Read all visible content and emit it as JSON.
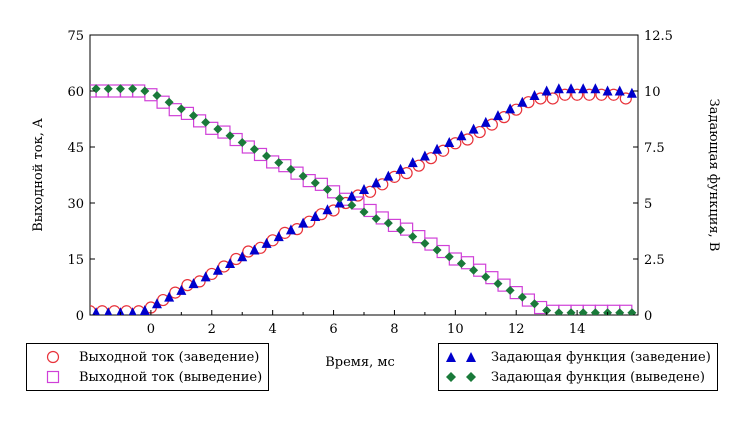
{
  "chart_data": {
    "type": "scatter",
    "xlabel": "Время, мс",
    "ylabel_left": "Выходной ток, А",
    "ylabel_right": "Задающая функция, В",
    "xlim": [
      -2,
      16
    ],
    "ylim_left": [
      0,
      75
    ],
    "ylim_right": [
      0,
      12.5
    ],
    "x_ticks": [
      0,
      2,
      4,
      6,
      8,
      10,
      12,
      14
    ],
    "y_ticks_left": [
      0,
      15,
      30,
      45,
      60,
      75
    ],
    "y_ticks_right": [
      0,
      2.5,
      5,
      7.5,
      10,
      12.5
    ],
    "y_tick_labels_right": [
      "0",
      "2.5",
      "5",
      "7.5",
      "10",
      "12.5"
    ],
    "grid": false,
    "legend_left_position": "bottom-left",
    "legend_right_position": "bottom-right",
    "series": [
      {
        "name": "Выходной ток (заведение)",
        "axis": "left",
        "marker": "circle",
        "color": "#e8323a",
        "x": [
          -2,
          -1.6,
          -1.2,
          -0.8,
          -0.4,
          0,
          0.4,
          0.8,
          1.2,
          1.6,
          2,
          2.4,
          2.8,
          3.2,
          3.6,
          4,
          4.4,
          4.8,
          5.2,
          5.6,
          6,
          6.4,
          6.8,
          7.2,
          7.6,
          8,
          8.4,
          8.8,
          9.2,
          9.6,
          10,
          10.4,
          10.8,
          11.2,
          11.6,
          12,
          12.4,
          12.8,
          13.2,
          13.6,
          14,
          14.4,
          14.8,
          15.2,
          15.6
        ],
        "y": [
          1,
          1,
          1,
          1,
          1,
          2,
          4,
          6,
          8,
          9,
          11,
          13,
          15,
          17,
          18,
          20,
          22,
          23,
          25,
          27,
          28,
          30,
          32,
          33,
          35,
          37,
          38,
          40,
          42,
          44,
          46,
          47,
          49,
          51,
          53,
          55,
          57,
          58,
          58,
          59,
          59,
          59,
          59,
          59,
          58
        ]
      },
      {
        "name": "Выходной ток (выведение)",
        "axis": "left",
        "marker": "square",
        "color": "#d040d8",
        "x": [
          -2,
          -1.6,
          -1.2,
          -0.8,
          -0.4,
          0,
          0.4,
          0.8,
          1.2,
          1.6,
          2,
          2.4,
          2.8,
          3.2,
          3.6,
          4,
          4.4,
          4.8,
          5.2,
          5.6,
          6,
          6.4,
          6.8,
          7.2,
          7.6,
          8,
          8.4,
          8.8,
          9.2,
          9.6,
          10,
          10.4,
          10.8,
          11.2,
          11.6,
          12,
          12.4,
          12.8,
          13.2,
          13.6,
          14,
          14.4,
          14.8,
          15.2,
          15.6
        ],
        "y": [
          60,
          60,
          60,
          60,
          60,
          59,
          57,
          55,
          54,
          52,
          50,
          49,
          47,
          45,
          43,
          41,
          40,
          38,
          36,
          35,
          33,
          31,
          30,
          28,
          26,
          24,
          23,
          21,
          19,
          17,
          15,
          14,
          12,
          10,
          8,
          6,
          4,
          2,
          1,
          1,
          1,
          1,
          1,
          1,
          1
        ]
      },
      {
        "name": "Задающая функция (заведение)",
        "axis": "right",
        "marker": "triangle",
        "color": "#0000cc",
        "x": [
          -1.8,
          -1.4,
          -1,
          -0.6,
          -0.2,
          0.2,
          0.6,
          1,
          1.4,
          1.8,
          2.2,
          2.6,
          3,
          3.4,
          3.8,
          4.2,
          4.6,
          5,
          5.4,
          5.8,
          6.2,
          6.6,
          7,
          7.4,
          7.8,
          8.2,
          8.6,
          9,
          9.4,
          9.8,
          10.2,
          10.6,
          11,
          11.4,
          11.8,
          12.2,
          12.6,
          13,
          13.4,
          13.8,
          14.2,
          14.6,
          15,
          15.4,
          15.8
        ],
        "y": [
          0.1,
          0.1,
          0.1,
          0.1,
          0.2,
          0.5,
          0.8,
          1.1,
          1.4,
          1.7,
          2,
          2.3,
          2.6,
          2.9,
          3.2,
          3.5,
          3.8,
          4.1,
          4.4,
          4.7,
          5,
          5.3,
          5.6,
          5.9,
          6.2,
          6.5,
          6.8,
          7.1,
          7.4,
          7.7,
          8,
          8.3,
          8.6,
          8.9,
          9.2,
          9.5,
          9.8,
          10,
          10.1,
          10.1,
          10.1,
          10.1,
          10,
          10,
          9.9
        ]
      },
      {
        "name": "Задающая функция (выведенe)",
        "axis": "right",
        "marker": "diamond",
        "color": "#1a7a3a",
        "x": [
          -1.8,
          -1.4,
          -1,
          -0.6,
          -0.2,
          0.2,
          0.6,
          1,
          1.4,
          1.8,
          2.2,
          2.6,
          3,
          3.4,
          3.8,
          4.2,
          4.6,
          5,
          5.4,
          5.8,
          6.2,
          6.6,
          7,
          7.4,
          7.8,
          8.2,
          8.6,
          9,
          9.4,
          9.8,
          10.2,
          10.6,
          11,
          11.4,
          11.8,
          12.2,
          12.6,
          13,
          13.4,
          13.8,
          14.2,
          14.6,
          15,
          15.4,
          15.8
        ],
        "y": [
          10.1,
          10.1,
          10.1,
          10.1,
          10,
          9.8,
          9.5,
          9.2,
          8.9,
          8.6,
          8.3,
          8,
          7.7,
          7.4,
          7.1,
          6.8,
          6.5,
          6.2,
          5.9,
          5.6,
          5.2,
          4.9,
          4.6,
          4.3,
          4.1,
          3.8,
          3.5,
          3.2,
          2.9,
          2.6,
          2.3,
          2,
          1.7,
          1.4,
          1.1,
          0.8,
          0.5,
          0.2,
          0.1,
          0.1,
          0.1,
          0.1,
          0.1,
          0.1,
          0.1
        ]
      }
    ]
  },
  "legend_left": {
    "items": [
      {
        "label": "Выходной ток (заведение)"
      },
      {
        "label": "Выходной ток (выведение)"
      }
    ]
  },
  "legend_right": {
    "items": [
      {
        "label": "Задающая функция (заведение)"
      },
      {
        "label": "Задающая функция (выведене)"
      }
    ]
  }
}
